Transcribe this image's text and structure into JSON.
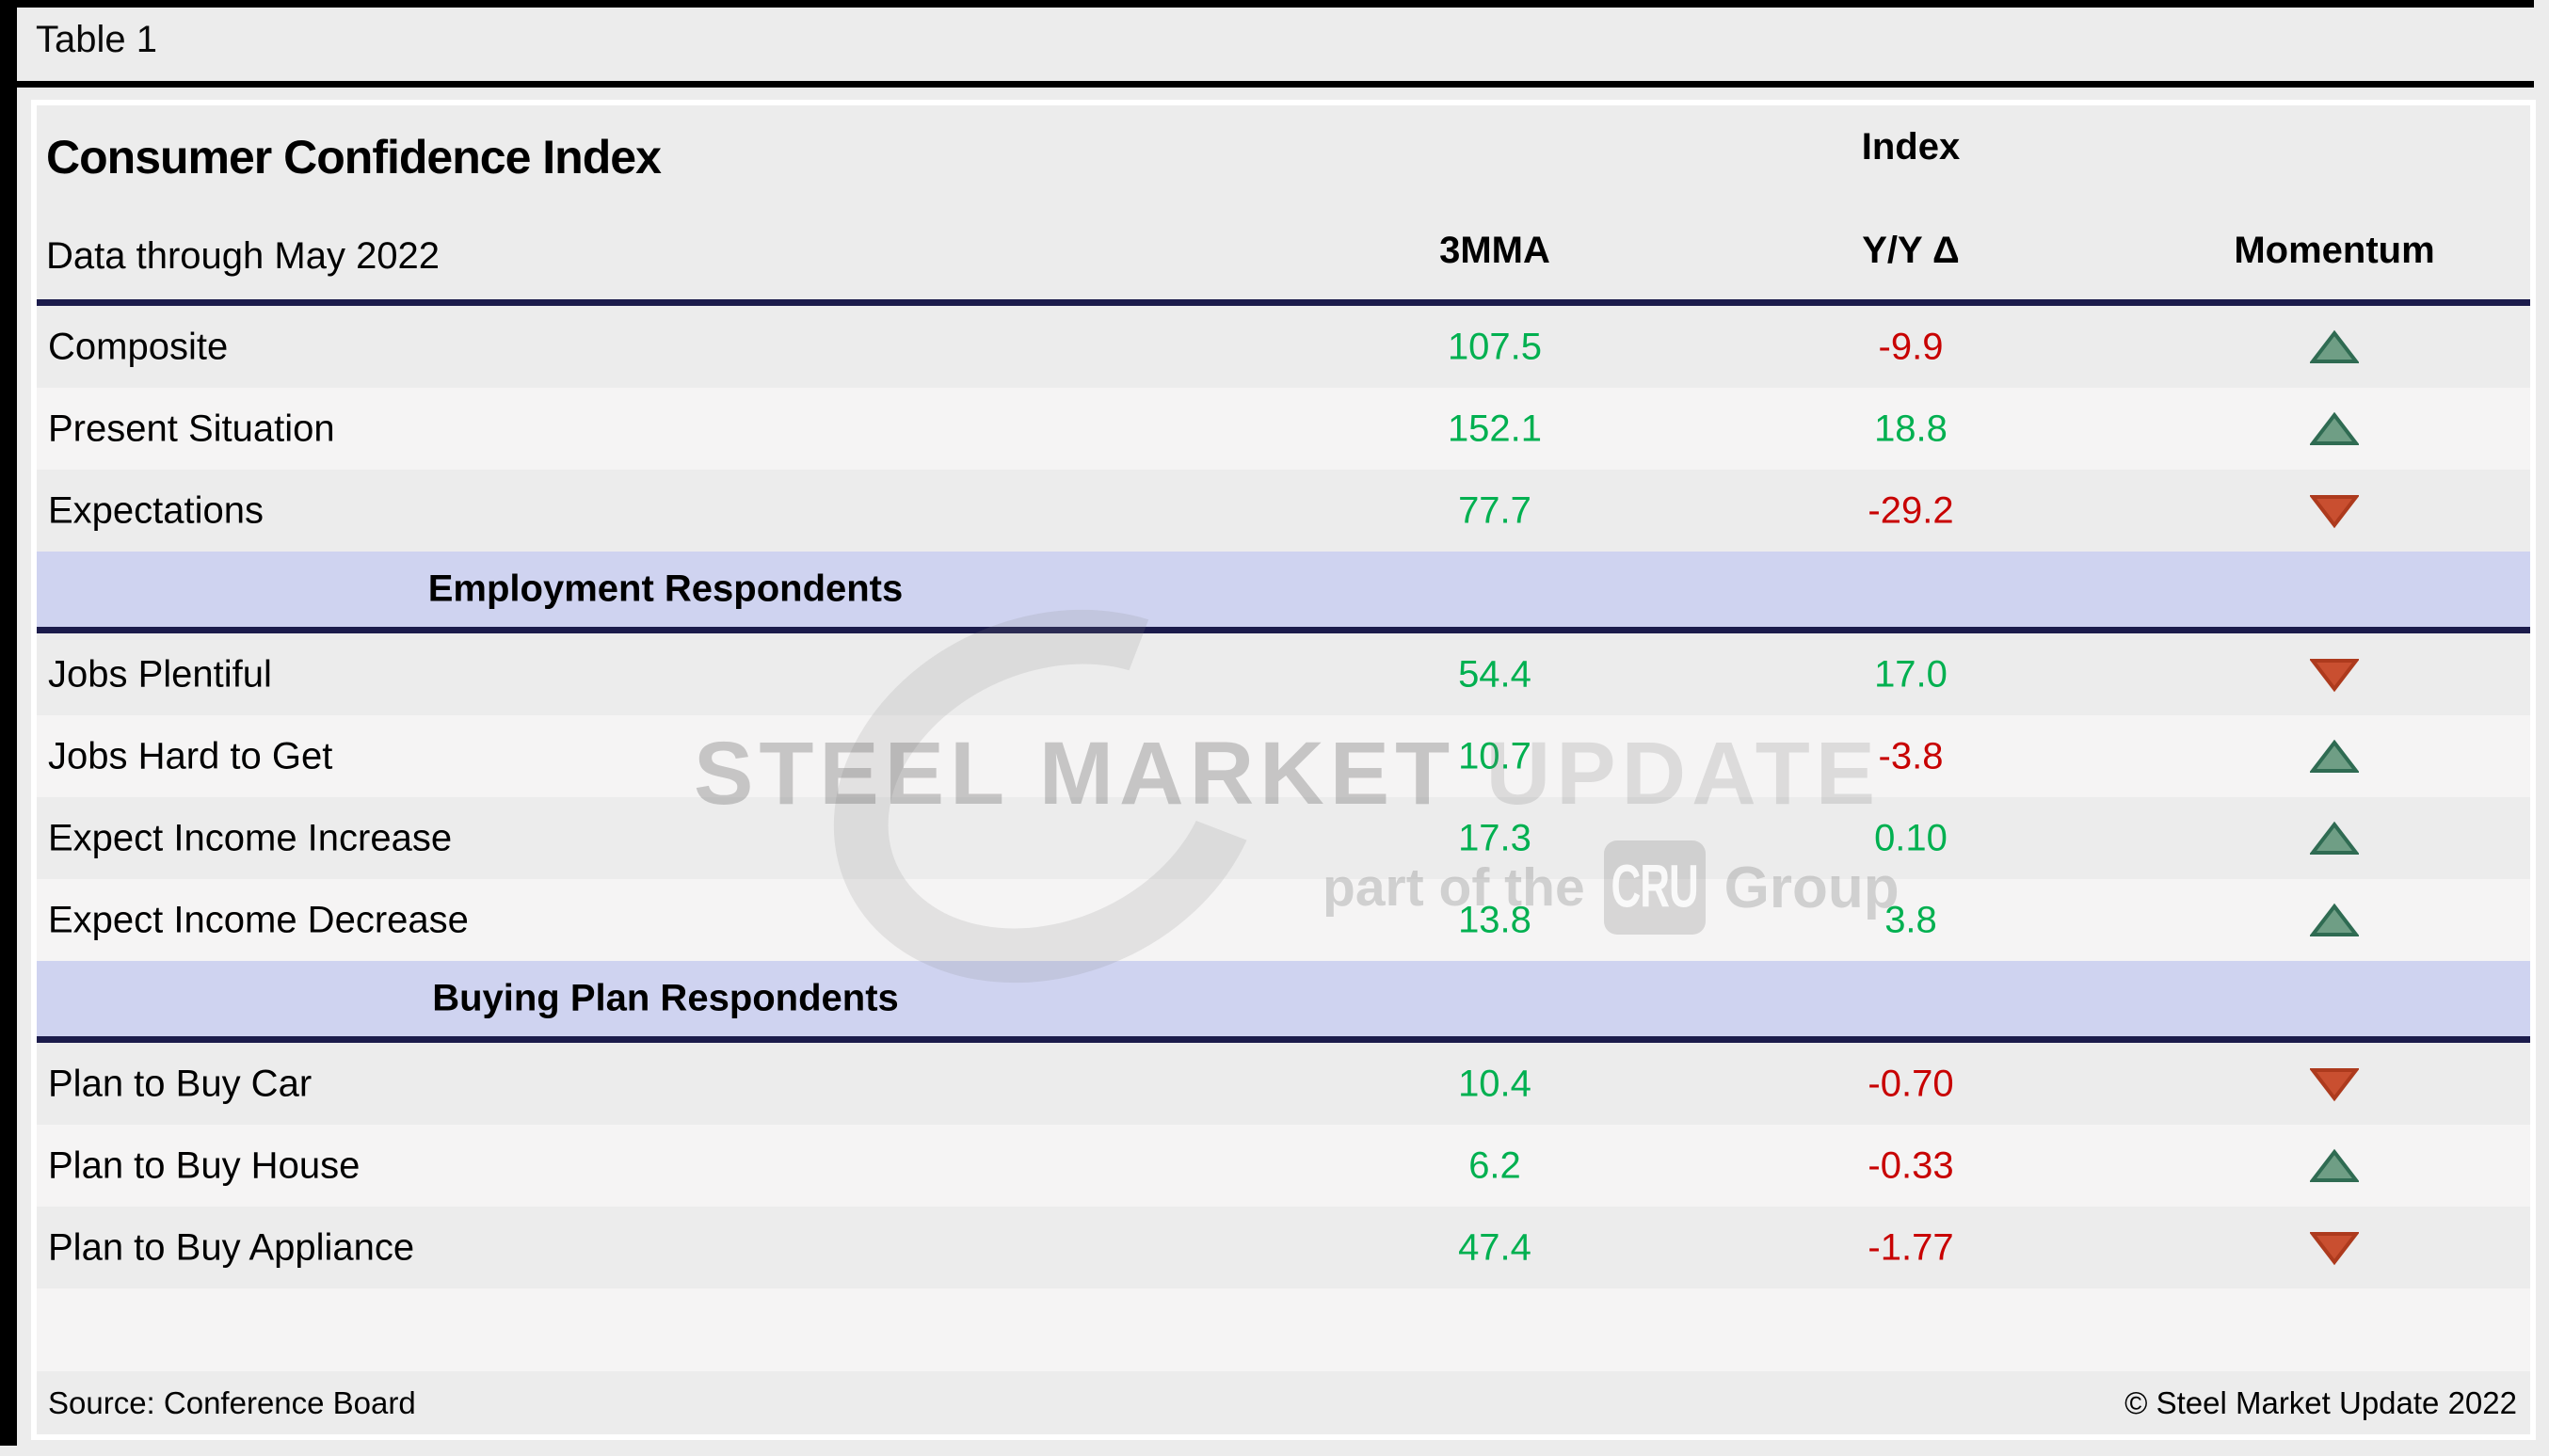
{
  "page": {
    "table_label": "Table 1"
  },
  "header": {
    "title": "Consumer Confidence Index",
    "subtitle": "Data through May 2022",
    "index_group_label": "Index",
    "columns": {
      "mma": "3MMA",
      "yoy": "Y/Y Δ",
      "momentum": "Momentum"
    }
  },
  "table": {
    "rows": [
      {
        "type": "data",
        "label": "Composite",
        "mma": "107.5",
        "mma_tone": "positive",
        "yoy": "-9.9",
        "yoy_tone": "negative",
        "momentum": "up"
      },
      {
        "type": "data",
        "label": "Present Situation",
        "mma": "152.1",
        "mma_tone": "positive",
        "yoy": "18.8",
        "yoy_tone": "positive",
        "momentum": "up"
      },
      {
        "type": "data",
        "label": "Expectations",
        "mma": "77.7",
        "mma_tone": "positive",
        "yoy": "-29.2",
        "yoy_tone": "negative",
        "momentum": "down"
      },
      {
        "type": "section",
        "label": "Employment Respondents"
      },
      {
        "type": "data",
        "label": "Jobs Plentiful",
        "mma": "54.4",
        "mma_tone": "positive",
        "yoy": "17.0",
        "yoy_tone": "positive",
        "momentum": "down"
      },
      {
        "type": "data",
        "label": "Jobs Hard to Get",
        "mma": "10.7",
        "mma_tone": "positive",
        "yoy": "-3.8",
        "yoy_tone": "negative",
        "momentum": "up"
      },
      {
        "type": "data",
        "label": "Expect Income Increase",
        "mma": "17.3",
        "mma_tone": "positive",
        "yoy": "0.10",
        "yoy_tone": "positive",
        "momentum": "up"
      },
      {
        "type": "data",
        "label": "Expect Income Decrease",
        "mma": "13.8",
        "mma_tone": "positive",
        "yoy": "3.8",
        "yoy_tone": "positive",
        "momentum": "up"
      },
      {
        "type": "section",
        "label": "Buying Plan Respondents"
      },
      {
        "type": "data",
        "label": "Plan to Buy Car",
        "mma": "10.4",
        "mma_tone": "positive",
        "yoy": "-0.70",
        "yoy_tone": "negative",
        "momentum": "down"
      },
      {
        "type": "data",
        "label": "Plan to Buy House",
        "mma": "6.2",
        "mma_tone": "positive",
        "yoy": "-0.33",
        "yoy_tone": "negative",
        "momentum": "up"
      },
      {
        "type": "data",
        "label": "Plan to Buy Appliance",
        "mma": "47.4",
        "mma_tone": "positive",
        "yoy": "-1.77",
        "yoy_tone": "negative",
        "momentum": "down"
      }
    ]
  },
  "footer": {
    "source": "Source: Conference Board",
    "copyright": "© Steel Market Update 2022"
  },
  "watermark": {
    "line1_strong": "STEEL MARKET",
    "line1_light": " UPDATE",
    "line2_prefix": "part of the",
    "line2_box": "CRU",
    "line2_suffix": "Group"
  },
  "colors": {
    "positive": "#00b050",
    "negative": "#c80202",
    "section_bg": "#cfd3f0",
    "divider": "#1b1b4b",
    "up_arrow_fill": "#6f9e85",
    "up_arrow_border": "#2f6b52",
    "down_arrow_fill": "#c94f30",
    "down_arrow_border": "#ad3a1d"
  }
}
